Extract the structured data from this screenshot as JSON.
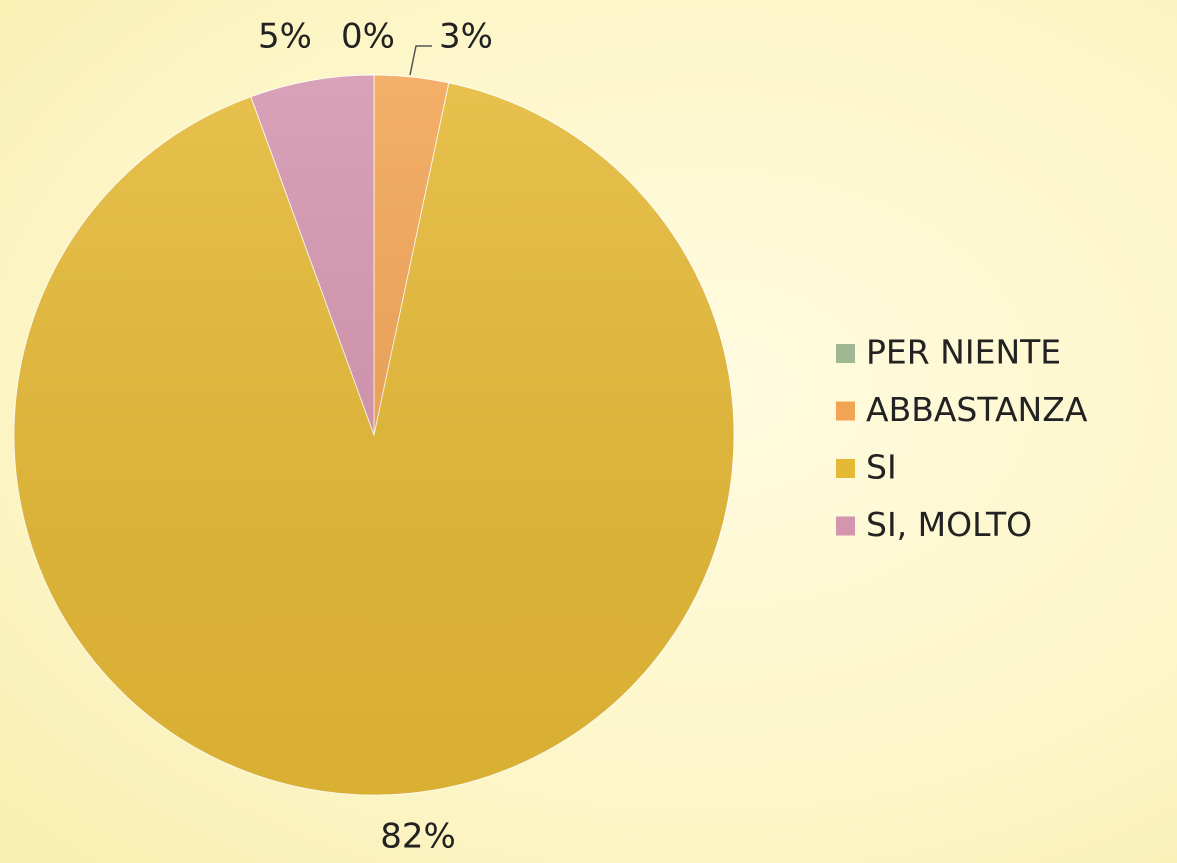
{
  "chart_data": {
    "type": "pie",
    "categories": [
      "PER NIENTE",
      "ABBASTANZA",
      "SI",
      "SI, MOLTO"
    ],
    "values": [
      0,
      3,
      82,
      5
    ],
    "value_labels": [
      "0%",
      "3%",
      "82%",
      "5%"
    ],
    "colors": [
      "#9fb894",
      "#f2a455",
      "#e5b936",
      "#d495ae"
    ],
    "legend": "right"
  }
}
